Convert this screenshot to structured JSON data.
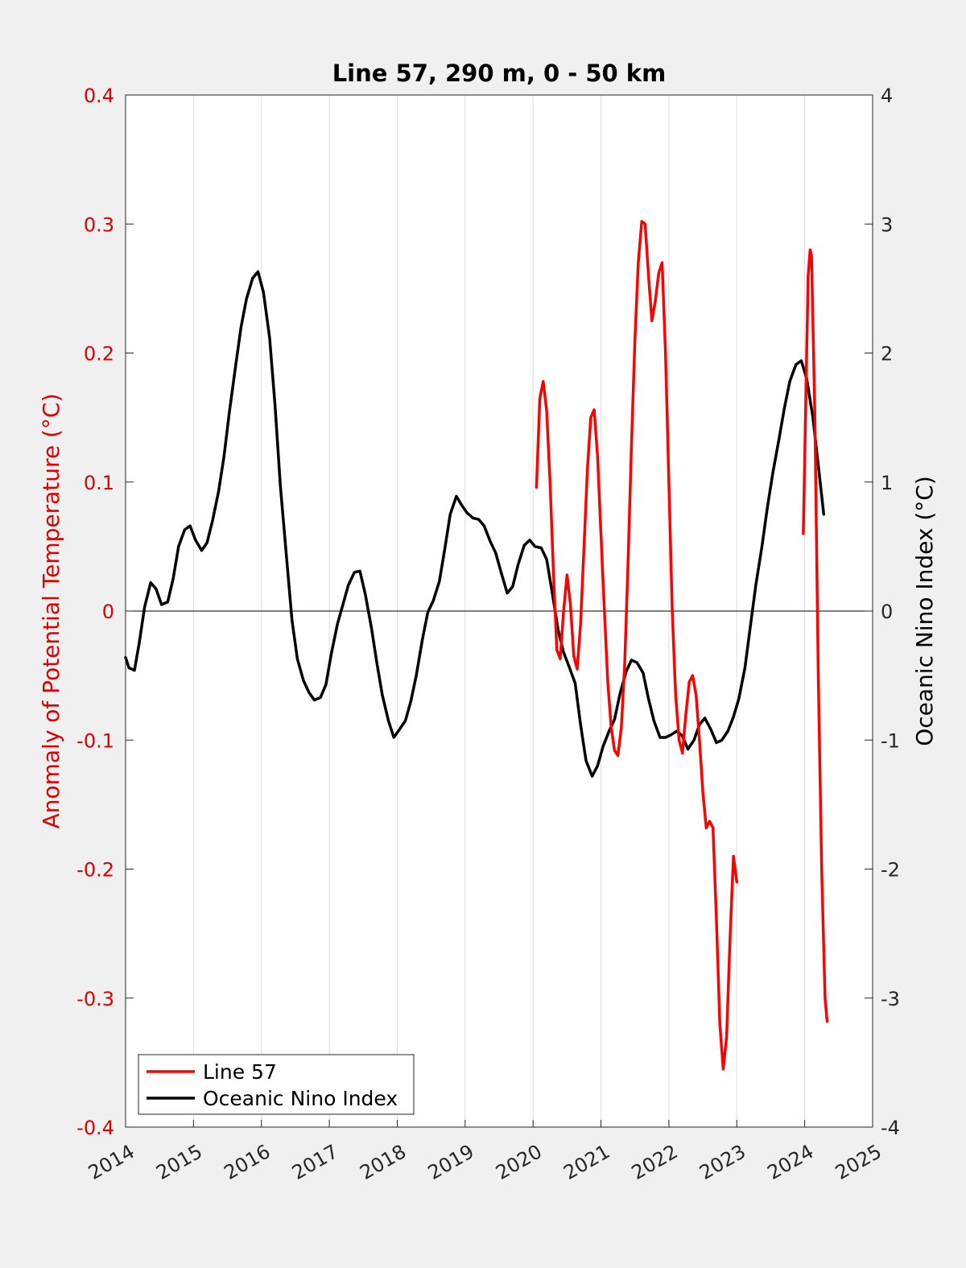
{
  "chart_data": {
    "type": "line",
    "title": "Line 57, 290 m, 0 - 50 km",
    "xlabel": "",
    "ylabel_left": "Anomaly of Potential Temperature (°C)",
    "ylabel_right": "Oceanic Nino Index (°C)",
    "xlim": [
      2014,
      2025
    ],
    "ylim_left": [
      -0.4,
      0.4
    ],
    "ylim_right": [
      -4,
      4
    ],
    "x_ticks": [
      "2014",
      "2015",
      "2016",
      "2017",
      "2018",
      "2019",
      "2020",
      "2021",
      "2022",
      "2023",
      "2024",
      "2025"
    ],
    "y_ticks_left": [
      "-0.4",
      "-0.3",
      "-0.2",
      "-0.1",
      "0",
      "0.1",
      "0.2",
      "0.3",
      "0.4"
    ],
    "y_ticks_right": [
      "-4",
      "-3",
      "-2",
      "-1",
      "0",
      "1",
      "2",
      "3",
      "4"
    ],
    "grid": "vertical",
    "zero_line": true,
    "legend_position": "bottom-left",
    "colors": {
      "line57": "#ff0000",
      "oni": "#000000",
      "left_axis": "#e00000",
      "right_axis": "#262626"
    },
    "series": [
      {
        "name": "Line 57",
        "axis": "left",
        "segments": [
          [
            [
              2020.05,
              0.096
            ],
            [
              2020.1,
              0.165
            ],
            [
              2020.15,
              0.178
            ],
            [
              2020.2,
              0.155
            ],
            [
              2020.25,
              0.1
            ],
            [
              2020.3,
              0.03
            ],
            [
              2020.35,
              -0.03
            ],
            [
              2020.4,
              -0.037
            ],
            [
              2020.45,
              0.0
            ],
            [
              2020.5,
              0.028
            ],
            [
              2020.55,
              0.005
            ],
            [
              2020.6,
              -0.035
            ],
            [
              2020.65,
              -0.045
            ],
            [
              2020.7,
              -0.01
            ],
            [
              2020.75,
              0.05
            ],
            [
              2020.8,
              0.11
            ],
            [
              2020.85,
              0.15
            ],
            [
              2020.9,
              0.156
            ],
            [
              2020.95,
              0.12
            ],
            [
              2021.0,
              0.06
            ],
            [
              2021.05,
              0.0
            ],
            [
              2021.1,
              -0.055
            ],
            [
              2021.15,
              -0.09
            ],
            [
              2021.2,
              -0.108
            ],
            [
              2021.25,
              -0.112
            ],
            [
              2021.3,
              -0.09
            ],
            [
              2021.35,
              -0.04
            ],
            [
              2021.4,
              0.04
            ],
            [
              2021.45,
              0.13
            ],
            [
              2021.5,
              0.21
            ],
            [
              2021.55,
              0.27
            ],
            [
              2021.6,
              0.302
            ],
            [
              2021.65,
              0.3
            ],
            [
              2021.7,
              0.26
            ],
            [
              2021.75,
              0.225
            ],
            [
              2021.8,
              0.24
            ],
            [
              2021.85,
              0.262
            ],
            [
              2021.9,
              0.27
            ],
            [
              2021.95,
              0.2
            ],
            [
              2022.0,
              0.1
            ],
            [
              2022.05,
              0.0
            ],
            [
              2022.1,
              -0.065
            ],
            [
              2022.15,
              -0.1
            ],
            [
              2022.2,
              -0.11
            ],
            [
              2022.25,
              -0.08
            ],
            [
              2022.3,
              -0.055
            ],
            [
              2022.35,
              -0.05
            ],
            [
              2022.4,
              -0.065
            ],
            [
              2022.45,
              -0.1
            ],
            [
              2022.5,
              -0.14
            ],
            [
              2022.55,
              -0.168
            ],
            [
              2022.6,
              -0.163
            ],
            [
              2022.65,
              -0.168
            ],
            [
              2022.7,
              -0.24
            ],
            [
              2022.75,
              -0.32
            ],
            [
              2022.8,
              -0.355
            ],
            [
              2022.85,
              -0.33
            ],
            [
              2022.9,
              -0.255
            ],
            [
              2022.95,
              -0.19
            ],
            [
              2023.0,
              -0.21
            ]
          ],
          [
            [
              2023.98,
              0.06
            ],
            [
              2024.05,
              0.26
            ],
            [
              2024.08,
              0.28
            ],
            [
              2024.1,
              0.275
            ],
            [
              2024.15,
              0.15
            ],
            [
              2024.2,
              -0.05
            ],
            [
              2024.25,
              -0.2
            ],
            [
              2024.3,
              -0.3
            ],
            [
              2024.33,
              -0.318
            ]
          ]
        ]
      },
      {
        "name": "Oceanic Nino Index",
        "axis": "right",
        "segments": [
          [
            [
              2014.0,
              -0.36
            ],
            [
              2014.05,
              -0.44
            ],
            [
              2014.13,
              -0.46
            ],
            [
              2014.2,
              -0.25
            ],
            [
              2014.28,
              0.03
            ],
            [
              2014.37,
              0.22
            ],
            [
              2014.45,
              0.17
            ],
            [
              2014.53,
              0.05
            ],
            [
              2014.62,
              0.07
            ],
            [
              2014.7,
              0.25
            ],
            [
              2014.78,
              0.5
            ],
            [
              2014.87,
              0.63
            ],
            [
              2014.95,
              0.66
            ],
            [
              2015.03,
              0.55
            ],
            [
              2015.12,
              0.47
            ],
            [
              2015.2,
              0.53
            ],
            [
              2015.28,
              0.7
            ],
            [
              2015.37,
              0.93
            ],
            [
              2015.45,
              1.2
            ],
            [
              2015.53,
              1.55
            ],
            [
              2015.62,
              1.9
            ],
            [
              2015.7,
              2.2
            ],
            [
              2015.78,
              2.42
            ],
            [
              2015.87,
              2.58
            ],
            [
              2015.95,
              2.63
            ],
            [
              2016.03,
              2.47
            ],
            [
              2016.12,
              2.12
            ],
            [
              2016.2,
              1.6
            ],
            [
              2016.28,
              0.97
            ],
            [
              2016.37,
              0.42
            ],
            [
              2016.45,
              -0.07
            ],
            [
              2016.53,
              -0.37
            ],
            [
              2016.62,
              -0.54
            ],
            [
              2016.7,
              -0.63
            ],
            [
              2016.78,
              -0.69
            ],
            [
              2016.87,
              -0.67
            ],
            [
              2016.95,
              -0.57
            ],
            [
              2017.03,
              -0.33
            ],
            [
              2017.12,
              -0.1
            ],
            [
              2017.2,
              0.05
            ],
            [
              2017.28,
              0.2
            ],
            [
              2017.37,
              0.3
            ],
            [
              2017.45,
              0.31
            ],
            [
              2017.53,
              0.13
            ],
            [
              2017.62,
              -0.13
            ],
            [
              2017.7,
              -0.4
            ],
            [
              2017.78,
              -0.65
            ],
            [
              2017.87,
              -0.85
            ],
            [
              2017.95,
              -0.98
            ],
            [
              2018.03,
              -0.92
            ],
            [
              2018.12,
              -0.85
            ],
            [
              2018.2,
              -0.7
            ],
            [
              2018.28,
              -0.5
            ],
            [
              2018.37,
              -0.22
            ],
            [
              2018.45,
              -0.01
            ],
            [
              2018.53,
              0.08
            ],
            [
              2018.62,
              0.23
            ],
            [
              2018.7,
              0.48
            ],
            [
              2018.78,
              0.75
            ],
            [
              2018.87,
              0.89
            ],
            [
              2018.95,
              0.82
            ],
            [
              2019.03,
              0.76
            ],
            [
              2019.12,
              0.72
            ],
            [
              2019.2,
              0.71
            ],
            [
              2019.28,
              0.66
            ],
            [
              2019.37,
              0.54
            ],
            [
              2019.45,
              0.45
            ],
            [
              2019.53,
              0.3
            ],
            [
              2019.62,
              0.14
            ],
            [
              2019.7,
              0.19
            ],
            [
              2019.78,
              0.36
            ],
            [
              2019.87,
              0.51
            ],
            [
              2019.95,
              0.55
            ],
            [
              2020.03,
              0.5
            ],
            [
              2020.12,
              0.49
            ],
            [
              2020.2,
              0.4
            ],
            [
              2020.28,
              0.15
            ],
            [
              2020.37,
              -0.15
            ],
            [
              2020.45,
              -0.32
            ],
            [
              2020.53,
              -0.43
            ],
            [
              2020.62,
              -0.56
            ],
            [
              2020.7,
              -0.88
            ],
            [
              2020.78,
              -1.16
            ],
            [
              2020.87,
              -1.28
            ],
            [
              2020.95,
              -1.2
            ],
            [
              2021.03,
              -1.05
            ],
            [
              2021.12,
              -0.93
            ],
            [
              2021.2,
              -0.84
            ],
            [
              2021.28,
              -0.64
            ],
            [
              2021.37,
              -0.47
            ],
            [
              2021.45,
              -0.38
            ],
            [
              2021.53,
              -0.4
            ],
            [
              2021.62,
              -0.48
            ],
            [
              2021.7,
              -0.68
            ],
            [
              2021.78,
              -0.85
            ],
            [
              2021.87,
              -0.98
            ],
            [
              2021.95,
              -0.98
            ],
            [
              2022.03,
              -0.96
            ],
            [
              2022.12,
              -0.93
            ],
            [
              2022.2,
              -0.97
            ],
            [
              2022.28,
              -1.07
            ],
            [
              2022.37,
              -1.0
            ],
            [
              2022.45,
              -0.88
            ],
            [
              2022.53,
              -0.83
            ],
            [
              2022.62,
              -0.92
            ],
            [
              2022.7,
              -1.02
            ],
            [
              2022.78,
              -1.0
            ],
            [
              2022.87,
              -0.93
            ],
            [
              2022.95,
              -0.82
            ],
            [
              2023.03,
              -0.68
            ],
            [
              2023.12,
              -0.44
            ],
            [
              2023.2,
              -0.12
            ],
            [
              2023.28,
              0.2
            ],
            [
              2023.37,
              0.5
            ],
            [
              2023.45,
              0.8
            ],
            [
              2023.53,
              1.07
            ],
            [
              2023.62,
              1.33
            ],
            [
              2023.7,
              1.57
            ],
            [
              2023.78,
              1.78
            ],
            [
              2023.87,
              1.91
            ],
            [
              2023.95,
              1.94
            ],
            [
              2024.03,
              1.8
            ],
            [
              2024.12,
              1.5
            ],
            [
              2024.2,
              1.13
            ],
            [
              2024.28,
              0.75
            ]
          ]
        ]
      }
    ],
    "legend": [
      "Line 57",
      "Oceanic Nino Index"
    ]
  }
}
